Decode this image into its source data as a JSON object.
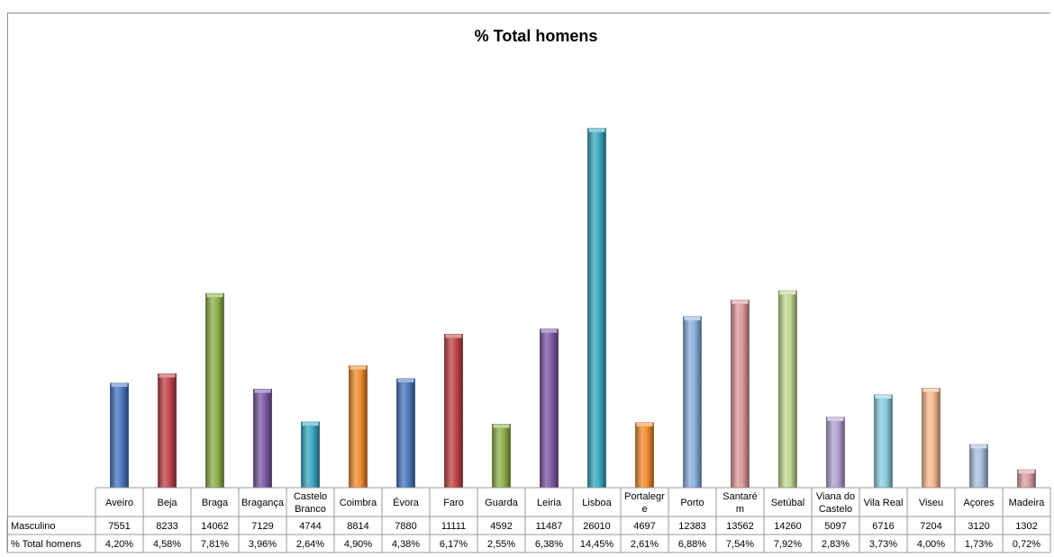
{
  "chart_data": {
    "type": "bar",
    "title": "% Total homens",
    "categories": [
      "Aveiro",
      "Beja",
      "Braga",
      "Bragança",
      "Castelo Branco",
      "Coimbra",
      "Évora",
      "Faro",
      "Guarda",
      "Leiria",
      "Lisboa",
      "Portalegre",
      "Porto",
      "Santarém",
      "Setúbal",
      "Viana do Castelo",
      "Vila Real",
      "Viseu",
      "Açores",
      "Madeira"
    ],
    "category_lines": [
      [
        "Aveiro"
      ],
      [
        "Beja"
      ],
      [
        "Braga"
      ],
      [
        "Bragança"
      ],
      [
        "Castelo",
        "Branco"
      ],
      [
        "Coimbra"
      ],
      [
        "Évora"
      ],
      [
        "Faro"
      ],
      [
        "Guarda"
      ],
      [
        "Leiria"
      ],
      [
        "Lisboa"
      ],
      [
        "Portalegr",
        "e"
      ],
      [
        "Porto"
      ],
      [
        "Santaré",
        "m"
      ],
      [
        "Setúbal"
      ],
      [
        "Viana do",
        "Castelo"
      ],
      [
        "Vila Real"
      ],
      [
        "Viseu"
      ],
      [
        "Açores"
      ],
      [
        "Madeira"
      ]
    ],
    "series": [
      {
        "name": "Masculino",
        "values": [
          7551,
          8233,
          14062,
          7129,
          4744,
          8814,
          7880,
          11111,
          4592,
          11487,
          26010,
          4697,
          12383,
          13562,
          14260,
          5097,
          6716,
          7204,
          3120,
          1302
        ]
      },
      {
        "name": "% Total homens",
        "values": [
          "4,20%",
          "4,58%",
          "7,81%",
          "3,96%",
          "2,64%",
          "4,90%",
          "4,38%",
          "6,17%",
          "2,55%",
          "6,38%",
          "14,45%",
          "2,61%",
          "6,88%",
          "7,54%",
          "7,92%",
          "2,83%",
          "3,73%",
          "4,00%",
          "1,73%",
          "0,72%"
        ]
      }
    ],
    "plotted_values": [
      4.2,
      4.58,
      7.81,
      3.96,
      2.64,
      4.9,
      4.38,
      6.17,
      2.55,
      6.38,
      14.45,
      2.61,
      6.88,
      7.54,
      7.92,
      2.83,
      3.73,
      4.0,
      1.73,
      0.72
    ],
    "ylim": [
      0,
      16
    ],
    "grid": false,
    "legend": "data-table",
    "colors": [
      "#4a78c0",
      "#c0454a",
      "#8db04a",
      "#7d5aa6",
      "#3aa8c0",
      "#f08c30",
      "#4a78c0",
      "#c0454a",
      "#8db04a",
      "#7d5aa6",
      "#3aa8c0",
      "#f08c30",
      "#8ab0e0",
      "#e09898",
      "#c0d890",
      "#b0a0d0",
      "#8ccce0",
      "#f8b890",
      "#a8c0e0",
      "#d8a0a0"
    ]
  }
}
